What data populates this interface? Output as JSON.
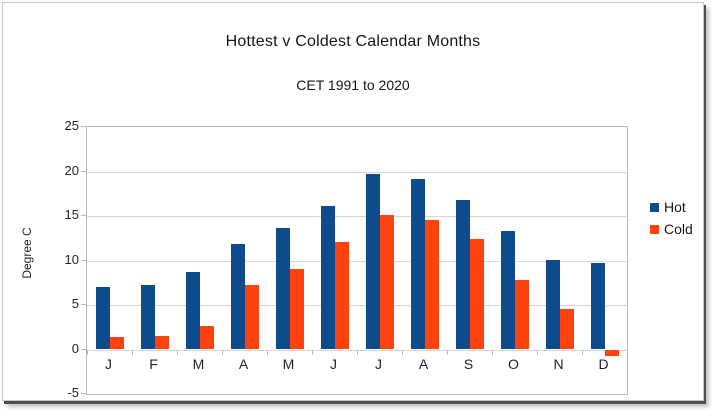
{
  "chart": {
    "title": "Hottest v Coldest Calendar Months",
    "subtitle": "CET 1991 to 2020",
    "y_axis_title": "Degree C"
  },
  "chart_data": {
    "type": "bar",
    "title": "Hottest v Coldest Calendar Months",
    "subtitle": "CET 1991 to 2020",
    "categories": [
      "J",
      "F",
      "M",
      "A",
      "M",
      "J",
      "J",
      "A",
      "S",
      "O",
      "N",
      "D"
    ],
    "series": [
      {
        "name": "Hot",
        "color": "#0d4b8c",
        "values": [
          7.0,
          7.3,
          8.7,
          11.8,
          13.6,
          16.1,
          19.7,
          19.2,
          16.8,
          13.3,
          10.1,
          9.7
        ]
      },
      {
        "name": "Cold",
        "color": "#ff420e",
        "values": [
          1.4,
          1.5,
          2.6,
          7.2,
          9.1,
          12.1,
          15.1,
          14.5,
          12.4,
          7.8,
          4.5,
          -0.7
        ]
      }
    ],
    "xlabel": "",
    "ylabel": "Degree C",
    "ylim": [
      -5,
      25
    ],
    "ytick_step": 5,
    "yticks": [
      25,
      20,
      15,
      10,
      5,
      0,
      -5
    ],
    "grid": true,
    "legend_position": "right",
    "plot_border_color": "#b9b9b9",
    "gridline_color": "#d6d6d6",
    "background_color": "#ffffff"
  }
}
